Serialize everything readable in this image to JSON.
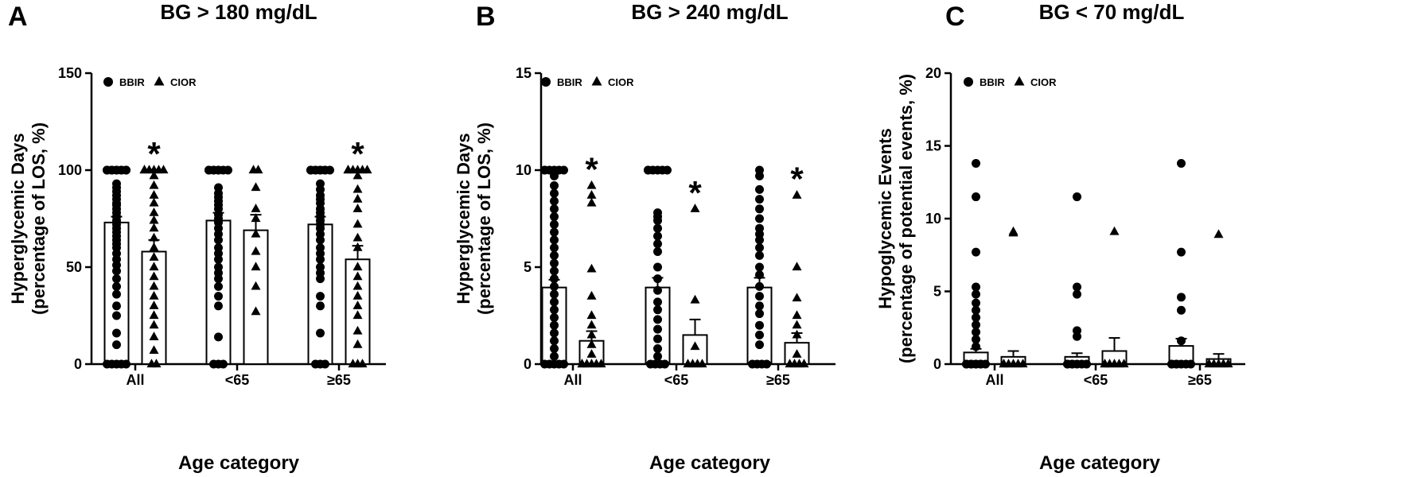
{
  "chart_data": [
    {
      "type": "bar",
      "panel_letter": "A",
      "title": "BG > 180 mg/dL",
      "xlabel": "Age category",
      "ylabel_line1": "Hyperglycemic Days",
      "ylabel_line2": "(percentage of LOS, %)",
      "ylim": [
        0,
        150
      ],
      "yticks": [
        0,
        50,
        100,
        150
      ],
      "categories": [
        "All",
        "<65",
        "≥65"
      ],
      "legend": [
        "BBIR",
        "CIOR"
      ],
      "legend_position": "top-left",
      "series": [
        {
          "name": "BBIR",
          "marker": "circle",
          "values": [
            73,
            74,
            72
          ],
          "sem": [
            3,
            4,
            4
          ],
          "points": [
            [
              100,
              100,
              100,
              100,
              100,
              100,
              100,
              100,
              100,
              100,
              93,
              91,
              89,
              87,
              85,
              83,
              82,
              80,
              78,
              76,
              74,
              72,
              70,
              68,
              66,
              64,
              62,
              60,
              57,
              54,
              51,
              48,
              44,
              40,
              36,
              30,
              25,
              16,
              10,
              0,
              0,
              0,
              0,
              0
            ],
            [
              100,
              100,
              100,
              100,
              100,
              100,
              100,
              100,
              91,
              88,
              86,
              84,
              82,
              80,
              77,
              75,
              73,
              70,
              67,
              64,
              60,
              57,
              54,
              50,
              47,
              44,
              40,
              35,
              30,
              14,
              0,
              0,
              0
            ],
            [
              100,
              100,
              100,
              100,
              100,
              100,
              100,
              100,
              100,
              93,
              90,
              87,
              85,
              83,
              80,
              78,
              76,
              74,
              72,
              70,
              67,
              64,
              60,
              57,
              54,
              50,
              47,
              44,
              35,
              30,
              16,
              0,
              0,
              0
            ]
          ]
        },
        {
          "name": "CIOR",
          "marker": "triangle",
          "values": [
            58,
            69,
            54
          ],
          "sem": [
            6,
            8,
            7
          ],
          "points": [
            [
              100,
              100,
              100,
              100,
              100,
              100,
              97,
              92,
              87,
              83,
              78,
              74,
              70,
              65,
              60,
              55,
              50,
              45,
              40,
              35,
              30,
              25,
              20,
              14,
              7,
              0,
              0
            ],
            [
              100,
              100,
              91,
              80,
              75,
              67,
              58,
              50,
              40,
              27
            ],
            [
              100,
              100,
              100,
              100,
              100,
              100,
              97,
              90,
              85,
              80,
              72,
              65,
              60,
              50,
              45,
              40,
              35,
              30,
              25,
              17,
              10,
              0,
              0,
              0
            ]
          ]
        }
      ],
      "annotations": [
        {
          "text": "*",
          "category": "All",
          "series": "CIOR"
        },
        {
          "text": "*",
          "category": "≥65",
          "series": "CIOR"
        }
      ]
    },
    {
      "type": "bar",
      "panel_letter": "B",
      "title": "BG > 240 mg/dL",
      "xlabel": "Age category",
      "ylabel_line1": "Hyperglycemic Days",
      "ylabel_line2": "(percentage of LOS, %)",
      "ylim": [
        0,
        15
      ],
      "yticks": [
        0,
        5,
        10,
        15
      ],
      "categories": [
        "All",
        "<65",
        "≥65"
      ],
      "legend": [
        "BBIR",
        "CIOR"
      ],
      "legend_position": "top-left",
      "series": [
        {
          "name": "BBIR",
          "marker": "circle",
          "values": [
            3.95,
            3.95,
            3.95
          ],
          "sem": [
            0.4,
            0.5,
            0.5
          ],
          "points": [
            [
              10,
              10,
              10,
              10,
              10,
              10,
              9.7,
              9.2,
              8.8,
              8.4,
              8,
              7.6,
              7.2,
              6.8,
              6.4,
              6,
              5.6,
              5.2,
              4.8,
              4.4,
              4,
              3.6,
              3.2,
              2.8,
              2.4,
              2,
              1.6,
              1.2,
              0.8,
              0.4,
              0,
              0,
              0,
              0,
              0
            ],
            [
              10,
              10,
              10,
              10,
              10,
              10,
              7.8,
              7.6,
              7.4,
              7,
              6.6,
              6.2,
              5.8,
              5,
              4.4,
              3.8,
              3.2,
              2.8,
              2.3,
              1.8,
              1.3,
              0.8,
              0.4,
              0,
              0,
              0,
              0
            ],
            [
              10,
              9.7,
              9,
              8.5,
              8,
              7.5,
              7,
              6.7,
              6.4,
              6,
              5.6,
              5,
              4.6,
              4,
              3.5,
              3,
              2.6,
              2,
              1.5,
              1,
              0,
              0,
              0,
              0
            ]
          ]
        },
        {
          "name": "CIOR",
          "marker": "triangle",
          "values": [
            1.2,
            1.5,
            1.1
          ],
          "sem": [
            0.5,
            0.8,
            0.5
          ],
          "points": [
            [
              9.2,
              8.7,
              8.3,
              4.9,
              3.5,
              2.5,
              2,
              1.5,
              1,
              0.5,
              0,
              0,
              0,
              0,
              0,
              0
            ],
            [
              8,
              3.3,
              0.9,
              0,
              0,
              0,
              0
            ],
            [
              8.7,
              5,
              3.4,
              2.5,
              2,
              1.5,
              0.5,
              0,
              0,
              0,
              0
            ]
          ]
        }
      ],
      "annotations": [
        {
          "text": "*",
          "category": "All",
          "series": "CIOR"
        },
        {
          "text": "*",
          "category": "<65",
          "series": "CIOR"
        },
        {
          "text": "*",
          "category": "≥65",
          "series": "CIOR"
        }
      ]
    },
    {
      "type": "bar",
      "panel_letter": "C",
      "title": "BG < 70 mg/dL",
      "xlabel": "Age category",
      "ylabel_line1": "Hypoglycemic Events",
      "ylabel_line2": "(percentage of potential events, %)",
      "ylim": [
        0,
        20
      ],
      "yticks": [
        0,
        5,
        10,
        15,
        20
      ],
      "categories": [
        "All",
        "<65",
        "≥65"
      ],
      "legend": [
        "BBIR",
        "CIOR"
      ],
      "legend_position": "top-left",
      "series": [
        {
          "name": "BBIR",
          "marker": "circle",
          "values": [
            0.8,
            0.5,
            1.25
          ],
          "sem": [
            0.25,
            0.25,
            0.5
          ],
          "points": [
            [
              13.8,
              11.5,
              7.7,
              5.3,
              4.8,
              4.2,
              3.7,
              3.2,
              2.7,
              2.2,
              1.7,
              1.2,
              0,
              0,
              0,
              0,
              0,
              0,
              0,
              0,
              0
            ],
            [
              11.5,
              5.3,
              4.8,
              2.3,
              1.9,
              0,
              0,
              0,
              0,
              0,
              0,
              0
            ],
            [
              13.8,
              7.7,
              4.6,
              3.7,
              1.6,
              0,
              0,
              0,
              0,
              0,
              0,
              0
            ]
          ]
        },
        {
          "name": "CIOR",
          "marker": "triangle",
          "values": [
            0.5,
            0.9,
            0.35
          ],
          "sem": [
            0.4,
            0.9,
            0.35
          ],
          "points": [
            [
              9.1,
              9.0,
              0,
              0,
              0,
              0,
              0,
              0
            ],
            [
              9.1,
              0,
              0,
              0,
              0,
              0,
              0
            ],
            [
              8.9,
              0,
              0,
              0,
              0,
              0
            ]
          ]
        }
      ],
      "annotations": []
    }
  ]
}
